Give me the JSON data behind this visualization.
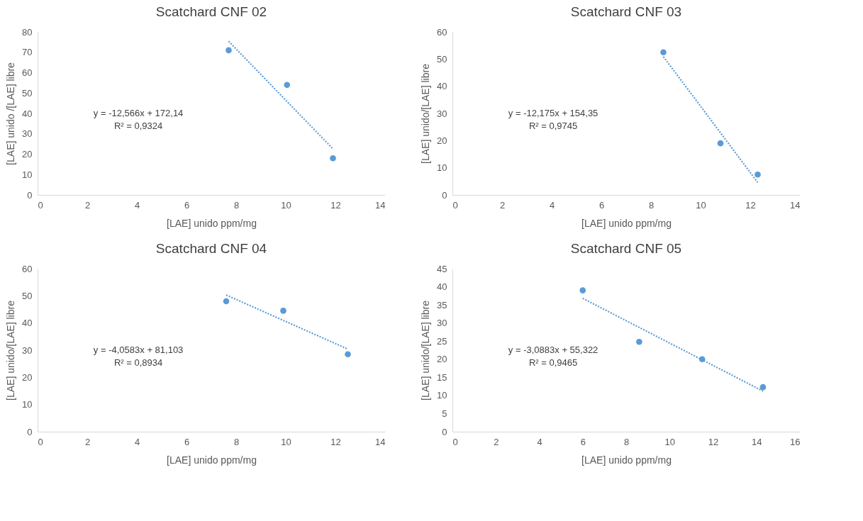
{
  "chart_data": [
    {
      "type": "scatter",
      "title": "Scatchard CNF 02",
      "xlabel": "[LAE] unido ppm/mg",
      "ylabel": "[LAE] unido /[LAE] libre",
      "xlim": [
        0,
        14
      ],
      "xticks": [
        0,
        2,
        4,
        6,
        8,
        10,
        12,
        14
      ],
      "ylim": [
        0,
        80
      ],
      "yticks": [
        0,
        10,
        20,
        30,
        40,
        50,
        60,
        70,
        80
      ],
      "grid": false,
      "annotations": [
        "y = -12,566x + 172,14",
        "R² = 0,9324"
      ],
      "series": [
        {
          "color": "#5b9bd5",
          "marker": "circle",
          "x": [
            7.7,
            10.05,
            11.9
          ],
          "values": [
            71,
            54,
            18
          ]
        },
        {
          "type": "line",
          "color": "#5b9bd5",
          "line_style": "dotted",
          "x": [
            7.7,
            11.9
          ],
          "values": [
            75.4,
            22.6
          ]
        }
      ]
    },
    {
      "type": "scatter",
      "title": "Scatchard CNF 03",
      "xlabel": "[LAE] unido ppm/mg",
      "ylabel": "[LAE] unido/[LAE] libre",
      "xlim": [
        0,
        14
      ],
      "xticks": [
        0,
        2,
        4,
        6,
        8,
        10,
        12,
        14
      ],
      "ylim": [
        0,
        60
      ],
      "yticks": [
        0,
        10,
        20,
        30,
        40,
        50,
        60
      ],
      "grid": false,
      "annotations": [
        "y = -12,175x + 154,35",
        "R² = 0,9745"
      ],
      "series": [
        {
          "color": "#5b9bd5",
          "marker": "circle",
          "x": [
            8.5,
            10.8,
            12.3
          ],
          "values": [
            52.5,
            19,
            7.5
          ]
        },
        {
          "type": "line",
          "color": "#5b9bd5",
          "line_style": "dotted",
          "x": [
            8.5,
            12.3
          ],
          "values": [
            50.9,
            4.6
          ]
        }
      ]
    },
    {
      "type": "scatter",
      "title": "Scatchard  CNF 04",
      "xlabel": "[LAE] unido ppm/mg",
      "ylabel": "[LAE] unido/[LAE] libre",
      "xlim": [
        0,
        14
      ],
      "xticks": [
        0,
        2,
        4,
        6,
        8,
        10,
        12,
        14
      ],
      "ylim": [
        0,
        60
      ],
      "yticks": [
        0,
        10,
        20,
        30,
        40,
        50,
        60
      ],
      "grid": false,
      "annotations": [
        "y = -4,0583x + 81,103",
        "R² = 0,8934"
      ],
      "series": [
        {
          "color": "#5b9bd5",
          "marker": "circle",
          "x": [
            7.6,
            9.9,
            12.5
          ],
          "values": [
            48,
            44.5,
            28.5
          ]
        },
        {
          "type": "line",
          "color": "#5b9bd5",
          "line_style": "dotted",
          "x": [
            7.6,
            12.5
          ],
          "values": [
            50.3,
            30.4
          ]
        }
      ]
    },
    {
      "type": "scatter",
      "title": "Scatchard CNF 05",
      "xlabel": "[LAE] unido ppm/mg",
      "ylabel": "[LAE] unido/[LAE] libre",
      "xlim": [
        0,
        16
      ],
      "xticks": [
        0,
        2,
        4,
        6,
        8,
        10,
        12,
        14,
        16
      ],
      "ylim": [
        0,
        45
      ],
      "yticks": [
        0,
        5,
        10,
        15,
        20,
        25,
        30,
        35,
        40,
        45
      ],
      "grid": false,
      "annotations": [
        "y = -3,0883x + 55,322",
        "R² = 0,9465"
      ],
      "series": [
        {
          "color": "#5b9bd5",
          "marker": "circle",
          "x": [
            6.0,
            8.6,
            11.5,
            14.3
          ],
          "values": [
            39,
            24.8,
            20,
            12.3
          ]
        },
        {
          "type": "line",
          "color": "#5b9bd5",
          "line_style": "dotted",
          "x": [
            6.0,
            14.3
          ],
          "values": [
            36.8,
            11.2
          ]
        }
      ]
    }
  ]
}
